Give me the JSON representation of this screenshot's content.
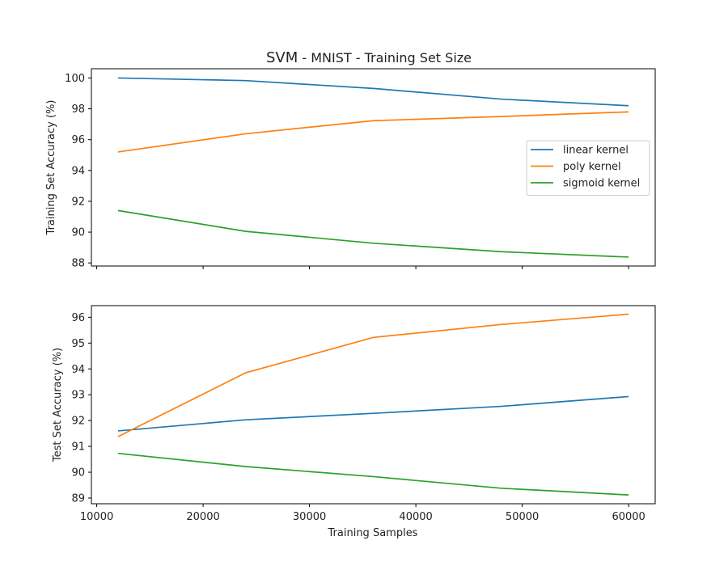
{
  "figure": {
    "title_main": "SVM",
    "title_rest": " - MNIST - Training Set Size",
    "xlabel": "Training Samples"
  },
  "chart_data": [
    {
      "type": "line",
      "x": [
        12000,
        24000,
        36000,
        48000,
        60000
      ],
      "ylabel": "Training Set Accuracy (%)",
      "xlim": [
        9500,
        62500
      ],
      "ylim": [
        87.8,
        100.6
      ],
      "xticks": [
        10000,
        20000,
        30000,
        40000,
        50000,
        60000
      ],
      "xticklabels_visible": false,
      "yticks": [
        88,
        90,
        92,
        94,
        96,
        98,
        100
      ],
      "legend": "center-right",
      "grid": false,
      "series": [
        {
          "name": "linear kernel",
          "color": "#1f77b4",
          "values": [
            100.0,
            99.83,
            99.32,
            98.63,
            98.2
          ]
        },
        {
          "name": "poly kernel",
          "color": "#ff7f0e",
          "values": [
            95.2,
            96.38,
            97.23,
            97.5,
            97.8
          ]
        },
        {
          "name": "sigmoid kernel",
          "color": "#2ca02c",
          "values": [
            91.4,
            90.05,
            89.28,
            88.73,
            88.38
          ]
        }
      ]
    },
    {
      "type": "line",
      "x": [
        12000,
        24000,
        36000,
        48000,
        60000
      ],
      "ylabel": "Test Set Accuracy (%)",
      "xlim": [
        9500,
        62500
      ],
      "ylim": [
        88.78,
        96.45
      ],
      "xticks": [
        10000,
        20000,
        30000,
        40000,
        50000,
        60000
      ],
      "xticklabels_visible": true,
      "yticks": [
        89,
        90,
        91,
        92,
        93,
        94,
        95,
        96
      ],
      "legend": "none",
      "grid": false,
      "series": [
        {
          "color": "#1f77b4",
          "values": [
            91.6,
            92.03,
            92.28,
            92.55,
            92.93
          ]
        },
        {
          "color": "#ff7f0e",
          "values": [
            91.38,
            93.85,
            95.22,
            95.72,
            96.12
          ]
        },
        {
          "color": "#2ca02c",
          "values": [
            90.73,
            90.22,
            89.83,
            89.38,
            89.12
          ]
        }
      ]
    }
  ]
}
